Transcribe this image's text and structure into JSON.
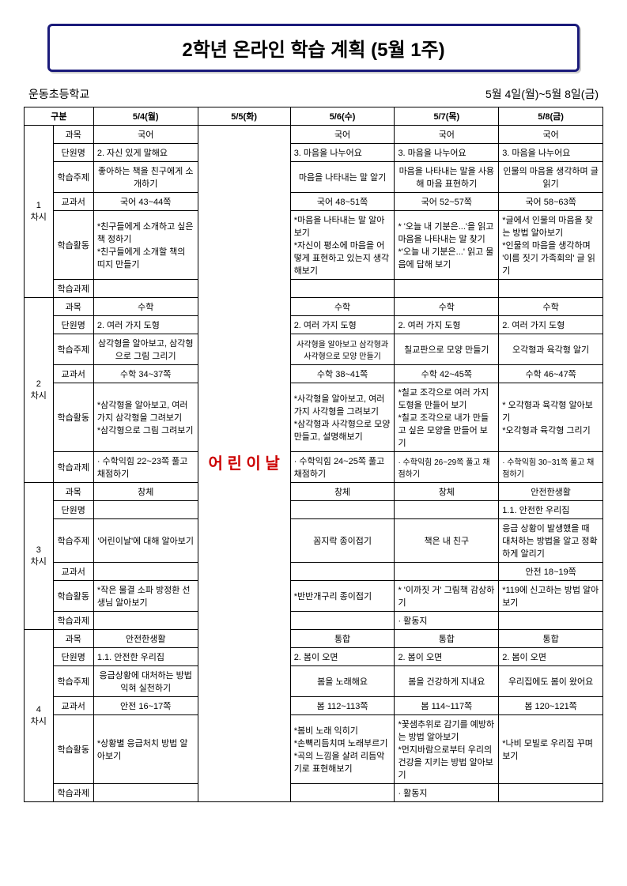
{
  "title": "2학년 온라인 학습 계획 (5월 1주)",
  "school": "운동초등학교",
  "daterange": "5월 4일(월)~5월 8일(금)",
  "headers": {
    "gubun": "구분",
    "mon": "5/4(월)",
    "tue": "5/5(화)",
    "wed": "5/6(수)",
    "thu": "5/7(목)",
    "fri": "5/8(금)"
  },
  "holiday": "어 린 이 날",
  "rows": {
    "subject": "과목",
    "unit": "단원명",
    "topic": "학습주제",
    "textbook": "교과서",
    "activity": "학습활동",
    "homework": "학습과제"
  },
  "p1": {
    "label": "1\n차시",
    "subject": {
      "mon": "국어",
      "wed": "국어",
      "thu": "국어",
      "fri": "국어"
    },
    "unit": {
      "mon": "2. 자신 있게 말해요",
      "wed": "3. 마음을 나누어요",
      "thu": "3. 마음을 나누어요",
      "fri": "3. 마음을 나누어요"
    },
    "topic": {
      "mon": "좋아하는 책을 친구에게 소개하기",
      "wed": "마음을 나타내는 말 알기",
      "thu": "마음을 나타내는 말을 사용해 마음 표현하기",
      "fri": "인물의 마음을 생각하며 글 읽기"
    },
    "textbook": {
      "mon": "국어 43~44쪽",
      "wed": "국어 48~51쪽",
      "thu": "국어 52~57쪽",
      "fri": "국어 58~63쪽"
    },
    "activity": {
      "mon": "*친구들에게 소개하고 싶은 책 정하기\n*친구들에게 소개할 책의 띠지 만들기",
      "wed": "*마음을 나타내는 말 알아보기\n*자신이 평소에 마음을 어떻게 표현하고 있는지 생각해보기",
      "thu": "* '오늘 내 기분은...'을 읽고 마음을 나타내는 말 찾기\n*'오늘 내 기분은...' 읽고 물음에 답해 보기",
      "fri": "*글에서 인물의 마음을 찾는 방법 알아보기\n*인물의 마음을 생각하며 '이름 짓기 가족회의' 글 읽기"
    },
    "homework": {
      "mon": "",
      "wed": "",
      "thu": "",
      "fri": ""
    }
  },
  "p2": {
    "label": "2\n차시",
    "subject": {
      "mon": "수학",
      "wed": "수학",
      "thu": "수학",
      "fri": "수학"
    },
    "unit": {
      "mon": "2. 여러 가지 도형",
      "wed": "2. 여러 가지 도형",
      "thu": "2. 여러 가지 도형",
      "fri": "2. 여러 가지 도형"
    },
    "topic": {
      "mon": "삼각형을 알아보고, 삼각형으로 그림 그리기",
      "wed": "사각형을 알아보고 삼각형과 사각형으로 모양 만들기",
      "thu": "칠교판으로 모양 만들기",
      "fri": "오각형과 육각형 알기"
    },
    "textbook": {
      "mon": "수학 34~37쪽",
      "wed": "수학 38~41쪽",
      "thu": "수학 42~45쪽",
      "fri": "수학 46~47쪽"
    },
    "activity": {
      "mon": "*삼각형을 알아보고, 여러 가지 삼각형을 그려보기\n*삼각형으로 그림 그려보기",
      "wed": "*사각형을 알아보고, 여러 가지 사각형을 그려보기\n*삼각형과 사각형으로 모양 만들고, 설명해보기",
      "thu": "*칠교 조각으로 여러 가지 도형을 만들어 보기\n*칠교 조각으로 내가 만들고 싶은 모양을 만들어 보기",
      "fri": "* 오각형과 육각형 알아보기\n*오각형과 육각형 그리기"
    },
    "homework": {
      "mon": "· 수학익힘 22~23쪽 풀고 채점하기",
      "wed": "· 수학익힘 24~25쪽 풀고 채점하기",
      "thu": "· 수학익힘 26~29쪽 풀고 채점하기",
      "fri": "· 수학익힘 30~31쪽 풀고 채점하기"
    }
  },
  "p3": {
    "label": "3\n차시",
    "subject": {
      "mon": "창체",
      "wed": "창체",
      "thu": "창체",
      "fri": "안전한생활"
    },
    "unit": {
      "mon": "",
      "wed": "",
      "thu": "",
      "fri": "1.1. 안전한 우리집"
    },
    "topic": {
      "mon": "'어린이날'에 대해 알아보기",
      "wed": "꼼지락 종이접기",
      "thu": "책은 내 친구",
      "fri": "응급 상황이 발생했을 때 대처하는 방법을 알고 정확하게 알리기"
    },
    "textbook": {
      "mon": "",
      "wed": "",
      "thu": "",
      "fri": "안전 18~19쪽"
    },
    "activity": {
      "mon": "*작은 물결 소파 방정환 선생님 알아보기",
      "wed": "*반반개구리 종이접기",
      "thu": "* '이까짓 거' 그림책 감상하기",
      "fri": "*119에 신고하는 방법 알아보기"
    },
    "homework": {
      "mon": "",
      "wed": "",
      "thu": "· 활동지",
      "fri": ""
    }
  },
  "p4": {
    "label": "4\n차시",
    "subject": {
      "mon": "안전한생활",
      "wed": "통합",
      "thu": "통합",
      "fri": "통합"
    },
    "unit": {
      "mon": "1.1. 안전한 우리집",
      "wed": "2. 봄이 오면",
      "thu": "2. 봄이 오면",
      "fri": "2. 봄이 오면"
    },
    "topic": {
      "mon": "응급상황에 대처하는 방법 익혀 실천하기",
      "wed": "봄을 노래해요",
      "thu": "봄을 건강하게 지내요",
      "fri": "우리집에도 봄이 왔어요"
    },
    "textbook": {
      "mon": "안전 16~17쪽",
      "wed": "봄 112~113쪽",
      "thu": "봄 114~117쪽",
      "fri": "봄 120~121쪽"
    },
    "activity": {
      "mon": "*상황별 응급처치 방법 알아보기",
      "wed": "*봄비 노래 익히기\n*손뼉리듬치며 노래부르기\n*곡의 느낌을 살려 리듬악기로 표현해보기",
      "thu": "*꽃샘추위로 감기를 예방하는 방법 알아보기\n*먼지바람으로부터 우리의 건강을 지키는 방법 알아보기",
      "fri": "*나비 모빌로 우리집 꾸며보기"
    },
    "homework": {
      "mon": "",
      "wed": "",
      "thu": "· 활동지",
      "fri": ""
    }
  }
}
